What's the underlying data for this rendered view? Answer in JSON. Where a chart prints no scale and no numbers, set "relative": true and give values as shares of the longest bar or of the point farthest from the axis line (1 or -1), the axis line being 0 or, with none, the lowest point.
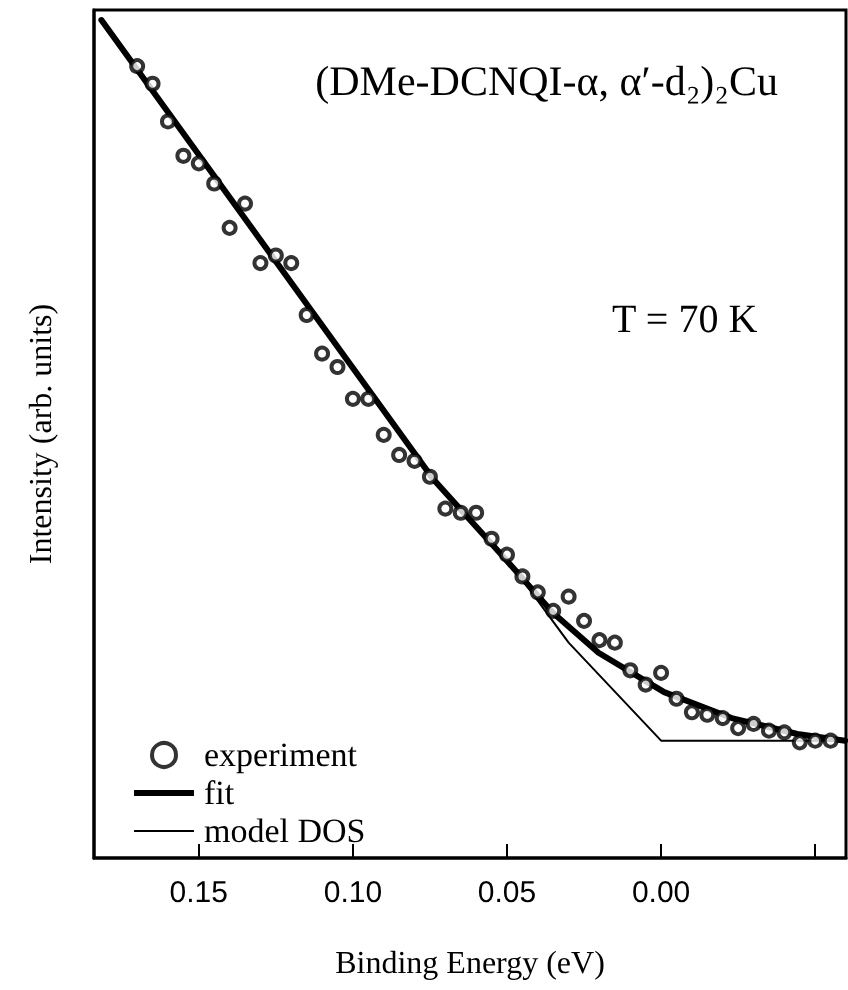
{
  "chart_data": {
    "type": "line",
    "title": "(DMe-DCNQI-α, α′-d₂)₂Cu",
    "annotations": [
      "T = 70 K"
    ],
    "xlabel": "Binding Energy (eV)",
    "ylabel": "Intensity (arb. units)",
    "relative": true,
    "xlim": [
      0.184,
      -0.06
    ],
    "xticks": [
      {
        "value": 0.15,
        "label": "0.15"
      },
      {
        "value": 0.1,
        "label": "0.10"
      },
      {
        "value": 0.05,
        "label": "0.05"
      },
      {
        "value": 0,
        "label": "0.00"
      },
      {
        "value": -0.05,
        "label": null
      }
    ],
    "grid": false,
    "legend": "bottom left",
    "series": [
      {
        "name": "experiment",
        "type": "scatter",
        "marker": "circle",
        "color": "#000000",
        "x": [
          0.17,
          0.165,
          0.16,
          0.155,
          0.15,
          0.145,
          0.14,
          0.135,
          0.13,
          0.125,
          0.12,
          0.115,
          0.11,
          0.105,
          0.1,
          0.095,
          0.09,
          0.085,
          0.08,
          0.075,
          0.07,
          0.065,
          0.06,
          0.055,
          0.05,
          0.045,
          0.04,
          0.035,
          0.03,
          0.025,
          0.02,
          0.015,
          0.01,
          0.005,
          0,
          -0.005,
          -0.01,
          -0.015,
          -0.02,
          -0.025,
          -0.03,
          -0.035,
          -0.04,
          -0.045,
          -0.05,
          -0.055
        ],
        "values": [
          0.945,
          0.924,
          0.879,
          0.838,
          0.829,
          0.805,
          0.752,
          0.781,
          0.71,
          0.719,
          0.71,
          0.648,
          0.602,
          0.586,
          0.548,
          0.548,
          0.505,
          0.481,
          0.474,
          0.455,
          0.417,
          0.412,
          0.412,
          0.381,
          0.362,
          0.336,
          0.317,
          0.295,
          0.312,
          0.283,
          0.26,
          0.257,
          0.224,
          0.207,
          0.221,
          0.19,
          0.174,
          0.171,
          0.167,
          0.155,
          0.16,
          0.152,
          0.15,
          0.138,
          0.14,
          0.14
        ]
      },
      {
        "name": "fit",
        "marker": "none",
        "line_style": "solid",
        "color": "#000000",
        "x": [
          0.1816,
          0.0739,
          0.0506,
          0.0352,
          0.0203,
          -0.001,
          -0.0229,
          -0.0442,
          -0.0597
        ],
        "values": [
          1.0,
          0.452,
          0.357,
          0.293,
          0.245,
          0.198,
          0.167,
          0.148,
          0.14
        ]
      },
      {
        "name": "model DOS",
        "marker": "none",
        "line_style": "solid",
        "color": "#000000",
        "x": [
          0.1816,
          0.0739,
          0.05,
          0.03,
          0,
          -0.0597
        ],
        "values": [
          1.0,
          0.452,
          0.357,
          0.257,
          0.14,
          0.14
        ]
      }
    ]
  }
}
